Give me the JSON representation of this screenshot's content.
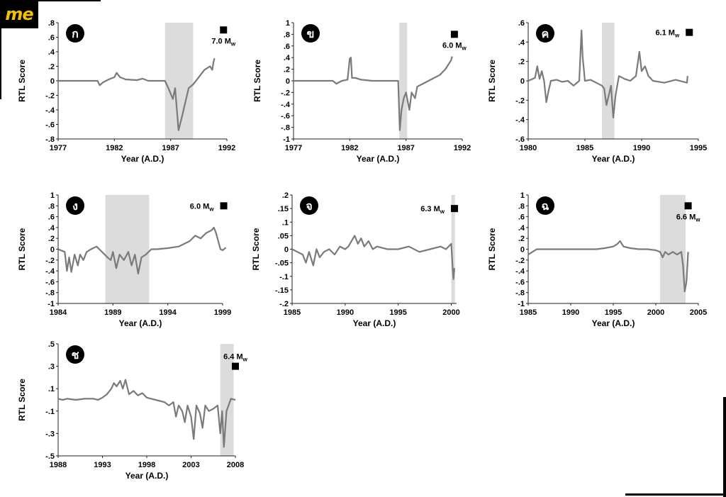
{
  "watermark": {
    "text": "me"
  },
  "chart_data": [
    {
      "type": "line",
      "badge": "ก",
      "xlabel": "Year (A.D.)",
      "ylabel": "RTL Score",
      "xlim": [
        1977,
        1992
      ],
      "ylim": [
        -0.8,
        0.8
      ],
      "xticks": [
        1977,
        1982,
        1987,
        1992
      ],
      "yticks": [
        -0.8,
        -0.6,
        -0.4,
        -0.2,
        0,
        0.2,
        0.4,
        0.6,
        0.8
      ],
      "shade": [
        1986.5,
        1989
      ],
      "event": {
        "x": 1991.7,
        "y": 0.7,
        "magnitude": "7.0",
        "unit": "M",
        "sub": "w"
      },
      "series": [
        {
          "x": [
            1977,
            1980.5,
            1980.7,
            1981,
            1981.5,
            1982,
            1982.2,
            1982.5,
            1983,
            1984,
            1984.5,
            1985,
            1986,
            1986.5,
            1986.8,
            1987.2,
            1987.4,
            1987.7,
            1988,
            1988.3,
            1988.6,
            1989,
            1989.5,
            1990,
            1990.5,
            1990.7,
            1990.8,
            1990.9
          ],
          "y": [
            0,
            0,
            -0.06,
            -0.02,
            0.02,
            0.05,
            0.11,
            0.05,
            0.02,
            0.01,
            0.03,
            0,
            0,
            0,
            -0.1,
            -0.25,
            -0.1,
            -0.68,
            -0.5,
            -0.3,
            -0.1,
            -0.05,
            0.05,
            0.15,
            0.2,
            0.15,
            0.25,
            0.31
          ]
        }
      ]
    },
    {
      "type": "line",
      "badge": "ข",
      "xlabel": "Year (A.D.)",
      "ylabel": "RTL Score",
      "xlim": [
        1977,
        1992
      ],
      "ylim": [
        -1,
        1
      ],
      "xticks": [
        1977,
        1982,
        1987,
        1992
      ],
      "yticks": [
        -1,
        -0.8,
        -0.6,
        -0.4,
        -0.2,
        0,
        0.2,
        0.4,
        0.6,
        0.8,
        1
      ],
      "shade": [
        1986.4,
        1987.1
      ],
      "event": {
        "x": 1991.3,
        "y": 0.8,
        "magnitude": "6.0",
        "unit": "M",
        "sub": "w"
      },
      "series": [
        {
          "x": [
            1977,
            1980.5,
            1980.8,
            1981.3,
            1981.8,
            1982,
            1982.1,
            1982.2,
            1982.5,
            1983,
            1984,
            1986.3,
            1986.45,
            1986.6,
            1986.8,
            1987,
            1987.3,
            1987.5,
            1987.8,
            1988,
            1988.5,
            1989,
            1989.5,
            1990,
            1990.5,
            1991,
            1991.1
          ],
          "y": [
            0,
            0,
            -0.05,
            0,
            0.02,
            0.38,
            0.4,
            0.05,
            0.05,
            0.02,
            0,
            0,
            -0.85,
            -0.5,
            -0.3,
            -0.2,
            -0.5,
            -0.2,
            -0.3,
            -0.1,
            -0.05,
            0,
            0.05,
            0.1,
            0.2,
            0.35,
            0.42
          ]
        }
      ]
    },
    {
      "type": "line",
      "badge": "ค",
      "xlabel": "Year (A.D.)",
      "ylabel": "RTL Score",
      "xlim": [
        1980,
        1995
      ],
      "ylim": [
        -0.6,
        0.6
      ],
      "xticks": [
        1980,
        1985,
        1990,
        1995
      ],
      "yticks": [
        -0.6,
        -0.4,
        -0.2,
        0,
        0.2,
        0.4,
        0.6
      ],
      "shade": [
        1986.5,
        1987.6
      ],
      "event": {
        "x": 1994.2,
        "y": 0.5,
        "magnitude": "6.1",
        "unit": "M",
        "sub": "w"
      },
      "series": [
        {
          "x": [
            1980,
            1980.6,
            1980.8,
            1981,
            1981.2,
            1981.4,
            1981.6,
            1981.8,
            1982,
            1982.5,
            1983,
            1983.5,
            1984,
            1984.5,
            1984.7,
            1984.8,
            1985,
            1985.5,
            1986,
            1986.5,
            1986.7,
            1986.9,
            1987.1,
            1987.3,
            1987.5,
            1987.7,
            1988,
            1988.5,
            1989,
            1989.5,
            1989.8,
            1990,
            1990.3,
            1990.6,
            1991,
            1992,
            1993,
            1994,
            1994.05
          ],
          "y": [
            0,
            0.03,
            0.15,
            0.02,
            0.1,
            0,
            -0.22,
            -0.1,
            0,
            0.01,
            -0.01,
            0,
            -0.05,
            0,
            0.52,
            0.25,
            0,
            0.01,
            -0.02,
            -0.05,
            -0.08,
            -0.25,
            -0.15,
            -0.05,
            -0.38,
            -0.15,
            0.05,
            0.02,
            0,
            0.05,
            0.3,
            0.1,
            0.15,
            0.05,
            0,
            -0.02,
            0.01,
            -0.02,
            0.05
          ]
        }
      ]
    },
    {
      "type": "line",
      "badge": "ง",
      "xlabel": "Year (A.D.)",
      "ylabel": "RTL Score",
      "xlim": [
        1984,
        1999
      ],
      "ylim": [
        -1,
        1
      ],
      "xticks": [
        1984,
        1989,
        1994,
        1999
      ],
      "yticks": [
        -1,
        -0.8,
        -0.6,
        -0.4,
        -0.2,
        0,
        0.2,
        0.4,
        0.6,
        0.8,
        1
      ],
      "shade": [
        1988.3,
        1992.3
      ],
      "event": {
        "x": 1999.1,
        "y": 0.8,
        "magnitude": "6.0",
        "unit": "M",
        "sub": "w"
      },
      "series": [
        {
          "x": [
            1984,
            1984.6,
            1984.8,
            1985,
            1985.2,
            1985.5,
            1985.8,
            1986,
            1986.3,
            1986.6,
            1987,
            1987.5,
            1988,
            1988.5,
            1988.8,
            1989,
            1989.3,
            1989.6,
            1990,
            1990.4,
            1990.7,
            1991,
            1991.3,
            1991.6,
            1992,
            1992.5,
            1993,
            1994,
            1995,
            1995.5,
            1996,
            1996.5,
            1997,
            1997.5,
            1998,
            1998.2,
            1998.4,
            1998.6,
            1998.8,
            1999,
            1999.3
          ],
          "y": [
            0,
            -0.05,
            -0.4,
            -0.15,
            -0.42,
            -0.1,
            -0.3,
            -0.1,
            -0.2,
            -0.05,
            0,
            0.05,
            -0.05,
            -0.15,
            -0.2,
            -0.05,
            -0.35,
            -0.1,
            -0.2,
            -0.05,
            -0.3,
            -0.1,
            -0.45,
            -0.15,
            -0.1,
            0,
            0,
            0.02,
            0.05,
            0.1,
            0.15,
            0.25,
            0.2,
            0.3,
            0.35,
            0.4,
            0.3,
            0.15,
            0,
            -0.02,
            0.03
          ]
        }
      ]
    },
    {
      "type": "line",
      "badge": "จ",
      "xlabel": "Year (A.D.)",
      "ylabel": "RTL Score",
      "xlim": [
        1985,
        2000.5
      ],
      "ylim": [
        -0.2,
        0.2
      ],
      "xticks": [
        1985,
        1990,
        1995,
        2000
      ],
      "yticks": [
        -0.2,
        -0.15,
        -0.1,
        -0.05,
        0,
        0.05,
        0.1,
        0.15,
        0.2
      ],
      "shade": [
        2000,
        2000.35
      ],
      "event": {
        "x": 2000.3,
        "y": 0.15,
        "magnitude": "6.3",
        "unit": "M",
        "sub": "w"
      },
      "series": [
        {
          "x": [
            1985,
            1985.5,
            1986,
            1986.3,
            1986.6,
            1987,
            1987.3,
            1987.6,
            1988,
            1988.5,
            1989,
            1989.5,
            1990,
            1990.3,
            1990.6,
            1990.9,
            1991.2,
            1991.5,
            1991.8,
            1992.2,
            1992.6,
            1993,
            1994,
            1995,
            1996,
            1997,
            1998,
            1999,
            1999.5,
            2000,
            2000.1,
            2000.2,
            2000.3
          ],
          "y": [
            0,
            -0.01,
            -0.02,
            -0.05,
            -0.01,
            -0.06,
            0,
            -0.03,
            -0.01,
            0,
            -0.02,
            0.01,
            0,
            0.01,
            0.03,
            0.05,
            0.02,
            0.04,
            0.01,
            0.03,
            0,
            0.01,
            0,
            0,
            0.01,
            -0.01,
            0,
            0.01,
            0,
            0.02,
            -0.05,
            -0.11,
            -0.07
          ]
        }
      ]
    },
    {
      "type": "line",
      "badge": "ฉ",
      "xlabel": "Year (A.D.)",
      "ylabel": "RTL Score",
      "xlim": [
        1985,
        2005
      ],
      "ylim": [
        -1,
        1
      ],
      "xticks": [
        1985,
        1990,
        1995,
        2000,
        2005
      ],
      "yticks": [
        -1,
        -0.8,
        -0.6,
        -0.4,
        -0.2,
        0,
        0.2,
        0.4,
        0.6,
        0.8,
        1
      ],
      "shade": [
        2000.5,
        2003.5
      ],
      "event": {
        "x": 2003.8,
        "y": 0.8,
        "magnitude": "6.6",
        "unit": "M",
        "sub": "w"
      },
      "series": [
        {
          "x": [
            1985,
            1985.5,
            1986,
            1987,
            1990,
            1993,
            1994,
            1995,
            1995.5,
            1995.8,
            1996.2,
            1997,
            1998,
            1999,
            2000,
            2000.5,
            2000.8,
            2001.1,
            2001.5,
            2002,
            2002.5,
            2003,
            2003.2,
            2003.4,
            2003.6,
            2003.8
          ],
          "y": [
            -0.1,
            -0.05,
            0,
            0,
            0,
            0,
            0.02,
            0.05,
            0.1,
            0.15,
            0.05,
            0.02,
            0,
            0,
            -0.02,
            -0.05,
            -0.15,
            -0.05,
            -0.1,
            -0.05,
            -0.1,
            -0.05,
            -0.3,
            -0.78,
            -0.6,
            -0.05
          ]
        }
      ]
    },
    {
      "type": "line",
      "badge": "ช",
      "xlabel": "Year (A.D.)",
      "ylabel": "RTL Score",
      "xlim": [
        1988,
        2008
      ],
      "ylim": [
        -0.5,
        0.5
      ],
      "xticks": [
        1988,
        1993,
        1998,
        2003,
        2008
      ],
      "yticks": [
        -0.5,
        -0.3,
        -0.1,
        0.1,
        0.3,
        0.5
      ],
      "shade": [
        2006.3,
        2007.8
      ],
      "event": {
        "x": 2008,
        "y": 0.3,
        "magnitude": "6.4",
        "unit": "M",
        "sub": "w"
      },
      "series": [
        {
          "x": [
            1988,
            1988.5,
            1989,
            1990,
            1991,
            1992,
            1992.5,
            1993,
            1993.5,
            1994,
            1994.3,
            1994.6,
            1995,
            1995.3,
            1995.6,
            1996,
            1996.5,
            1997,
            1997.5,
            1998,
            1998.5,
            1999,
            2000,
            2000.5,
            2001,
            2001.3,
            2001.6,
            2002,
            2002.3,
            2002.6,
            2003,
            2003.3,
            2003.6,
            2004,
            2004.3,
            2004.6,
            2005,
            2005.5,
            2006,
            2006.3,
            2006.5,
            2006.7,
            2007,
            2007.5,
            2008
          ],
          "y": [
            0.01,
            0,
            0.01,
            0,
            0.01,
            0.01,
            0,
            0.02,
            0.05,
            0.1,
            0.15,
            0.12,
            0.17,
            0.1,
            0.18,
            0.05,
            0.08,
            0.04,
            0.06,
            0.02,
            0.01,
            0,
            -0.02,
            -0.05,
            -0.02,
            -0.15,
            -0.05,
            -0.1,
            -0.2,
            -0.05,
            -0.15,
            -0.35,
            -0.05,
            -0.12,
            -0.25,
            -0.05,
            -0.1,
            -0.08,
            -0.05,
            -0.3,
            -0.1,
            -0.42,
            -0.1,
            0.01,
            0
          ]
        }
      ]
    }
  ]
}
